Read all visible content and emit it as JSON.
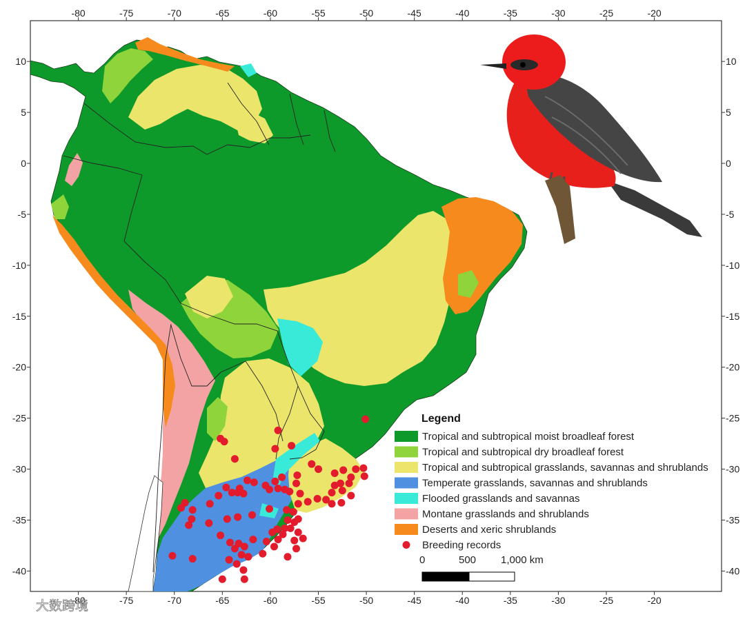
{
  "map": {
    "xlim": [
      -85,
      -13
    ],
    "ylim": [
      -42,
      14
    ],
    "x_ticks": [
      -80,
      -75,
      -70,
      -65,
      -60,
      -55,
      -50,
      -45,
      -40,
      -35,
      -30,
      -25,
      -20
    ],
    "y_ticks": [
      10,
      5,
      0,
      -5,
      -10,
      -15,
      -20,
      -25,
      -30,
      -35,
      -40
    ],
    "x_tick_labels": [
      "-80",
      "-75",
      "-70",
      "-65",
      "-60",
      "-55",
      "-50",
      "-45",
      "-40",
      "-35",
      "-30",
      "-25",
      "-20"
    ],
    "y_tick_labels": [
      "10",
      "5",
      "0",
      "-5",
      "-10",
      "-15",
      "-20",
      "-25",
      "-30",
      "-35",
      "-40"
    ]
  },
  "colors": {
    "moist_forest": "#0e9a2a",
    "dry_forest": "#8fd43a",
    "grasslands_trop": "#ece56c",
    "temperate": "#4f90e0",
    "flooded": "#39ead8",
    "montane": "#f3a3a3",
    "deserts": "#f78a1c",
    "records": "#e21b2d"
  },
  "legend": {
    "title": "Legend",
    "items": [
      {
        "label": "Tropical and subtropical moist broadleaf forest",
        "color": "#0e9a2a",
        "marker": "rect"
      },
      {
        "label": "Tropical and subtropical dry broadleaf forest",
        "color": "#8fd43a",
        "marker": "rect"
      },
      {
        "label": "Tropical and subtropical grasslands, savannas and shrublands",
        "color": "#ece56c",
        "marker": "rect"
      },
      {
        "label": "Temperate grasslands, savannas and shrublands",
        "color": "#4f90e0",
        "marker": "rect"
      },
      {
        "label": "Flooded grasslands and savannas",
        "color": "#39ead8",
        "marker": "rect"
      },
      {
        "label": "Montane grasslands and shrublands",
        "color": "#f3a3a3",
        "marker": "rect"
      },
      {
        "label": "Deserts and xeric shrublands",
        "color": "#f78a1c",
        "marker": "rect"
      },
      {
        "label": "Breeding records",
        "color": "#e21b2d",
        "marker": "dot"
      }
    ]
  },
  "scale_bar": {
    "labels": [
      "0",
      "500",
      "1,000 km"
    ]
  },
  "watermark": {
    "text": "大数跨境"
  },
  "breeding_records": [
    [
      -50.1,
      -25.1
    ],
    [
      -59.2,
      -26.2
    ],
    [
      -59.5,
      -28.0
    ],
    [
      -57.8,
      -27.7
    ],
    [
      -65.2,
      -27.0
    ],
    [
      -64.8,
      -27.3
    ],
    [
      -63.7,
      -29.0
    ],
    [
      -55.7,
      -29.5
    ],
    [
      -55.0,
      -30.0
    ],
    [
      -53.3,
      -30.4
    ],
    [
      -52.4,
      -30.1
    ],
    [
      -51.6,
      -30.8
    ],
    [
      -51.1,
      -30.0
    ],
    [
      -50.3,
      -29.9
    ],
    [
      -50.2,
      -30.7
    ],
    [
      -51.8,
      -31.4
    ],
    [
      -52.7,
      -31.4
    ],
    [
      -53.3,
      -31.6
    ],
    [
      -53.6,
      -32.3
    ],
    [
      -52.5,
      -32.1
    ],
    [
      -51.6,
      -32.6
    ],
    [
      -52.6,
      -33.3
    ],
    [
      -53.6,
      -33.4
    ],
    [
      -54.2,
      -33.0
    ],
    [
      -55.1,
      -32.9
    ],
    [
      -56.1,
      -33.2
    ],
    [
      -57.1,
      -33.4
    ],
    [
      -58.0,
      -32.2
    ],
    [
      -57.3,
      -31.4
    ],
    [
      -56.9,
      -32.4
    ],
    [
      -57.2,
      -30.6
    ],
    [
      -58.8,
      -30.8
    ],
    [
      -59.2,
      -31.9
    ],
    [
      -58.5,
      -32.0
    ],
    [
      -60.5,
      -31.6
    ],
    [
      -60.1,
      -32.0
    ],
    [
      -59.5,
      -31.2
    ],
    [
      -61.7,
      -31.3
    ],
    [
      -62.4,
      -31.1
    ],
    [
      -63.2,
      -31.9
    ],
    [
      -64.6,
      -31.8
    ],
    [
      -64.0,
      -32.3
    ],
    [
      -62.8,
      -32.4
    ],
    [
      -63.4,
      -32.3
    ],
    [
      -65.4,
      -32.6
    ],
    [
      -66.3,
      -33.4
    ],
    [
      -68.9,
      -33.3
    ],
    [
      -69.3,
      -33.8
    ],
    [
      -68.1,
      -34.0
    ],
    [
      -68.2,
      -34.9
    ],
    [
      -68.5,
      -35.5
    ],
    [
      -66.4,
      -35.3
    ],
    [
      -65.2,
      -36.5
    ],
    [
      -64.5,
      -34.9
    ],
    [
      -63.4,
      -34.7
    ],
    [
      -61.9,
      -34.5
    ],
    [
      -60.1,
      -33.9
    ],
    [
      -58.3,
      -34.0
    ],
    [
      -57.6,
      -34.2
    ],
    [
      -57.1,
      -34.9
    ],
    [
      -57.5,
      -35.2
    ],
    [
      -58.2,
      -35.0
    ],
    [
      -58.5,
      -35.8
    ],
    [
      -57.9,
      -35.8
    ],
    [
      -58.7,
      -36.4
    ],
    [
      -59.3,
      -35.9
    ],
    [
      -57.1,
      -36.2
    ],
    [
      -56.6,
      -36.8
    ],
    [
      -57.5,
      -37.0
    ],
    [
      -59.2,
      -36.9
    ],
    [
      -59.8,
      -36.2
    ],
    [
      -60.4,
      -37.1
    ],
    [
      -61.8,
      -36.9
    ],
    [
      -63.3,
      -37.3
    ],
    [
      -63.7,
      -37.8
    ],
    [
      -62.7,
      -37.6
    ],
    [
      -62.3,
      -38.6
    ],
    [
      -63.0,
      -38.4
    ],
    [
      -64.3,
      -38.9
    ],
    [
      -63.5,
      -39.3
    ],
    [
      -62.8,
      -39.9
    ],
    [
      -68.1,
      -38.8
    ],
    [
      -70.2,
      -38.5
    ],
    [
      -57.3,
      -37.8
    ],
    [
      -58.2,
      -38.6
    ],
    [
      -65.0,
      -40.8
    ],
    [
      -62.7,
      -40.8
    ],
    [
      -64.2,
      -37.2
    ],
    [
      -60.8,
      -38.3
    ],
    [
      -59.6,
      -37.6
    ]
  ]
}
